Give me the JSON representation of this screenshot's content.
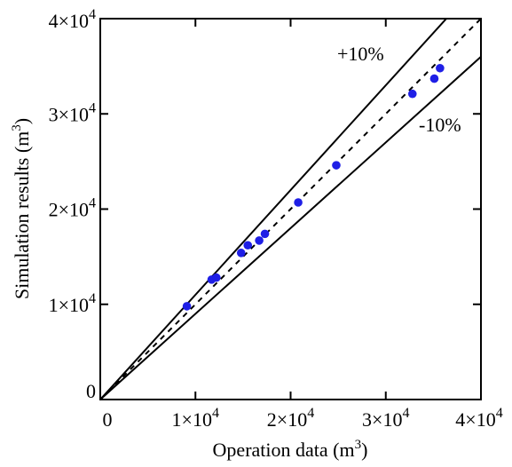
{
  "chart_data": {
    "type": "scatter",
    "xlabel": "Operation data (m",
    "xlabel_sup": "3",
    "xlabel_end": ")",
    "ylabel": "Simulation results (m",
    "ylabel_sup": "3",
    "ylabel_end": ")",
    "xlim": [
      0,
      40000
    ],
    "ylim": [
      0,
      40000
    ],
    "grid": false,
    "color": "#1f1fe6",
    "xticks": [
      {
        "value": 0,
        "base": "0",
        "exp": ""
      },
      {
        "value": 10000,
        "base": "1×10",
        "exp": "4"
      },
      {
        "value": 20000,
        "base": "2×10",
        "exp": "4"
      },
      {
        "value": 30000,
        "base": "3×10",
        "exp": "4"
      },
      {
        "value": 40000,
        "base": "4×10",
        "exp": "4"
      }
    ],
    "yticks": [
      {
        "value": 0,
        "base": "0",
        "exp": ""
      },
      {
        "value": 10000,
        "base": "1×10",
        "exp": "4"
      },
      {
        "value": 20000,
        "base": "2×10",
        "exp": "4"
      },
      {
        "value": 30000,
        "base": "3×10",
        "exp": "4"
      },
      {
        "value": 40000,
        "base": "4×10",
        "exp": "4"
      }
    ],
    "reference_lines": [
      {
        "slope": 1.0,
        "style": "dashed"
      },
      {
        "slope": 1.1,
        "style": "solid",
        "label": "+10%"
      },
      {
        "slope": 0.9,
        "style": "solid",
        "label": "-10%"
      }
    ],
    "points": [
      {
        "x": 9100,
        "y": 9800
      },
      {
        "x": 11700,
        "y": 12600
      },
      {
        "x": 12200,
        "y": 12800
      },
      {
        "x": 14800,
        "y": 15400
      },
      {
        "x": 15500,
        "y": 16200
      },
      {
        "x": 16700,
        "y": 16700
      },
      {
        "x": 17300,
        "y": 17400
      },
      {
        "x": 20800,
        "y": 20700
      },
      {
        "x": 24800,
        "y": 24600
      },
      {
        "x": 32800,
        "y": 32100
      },
      {
        "x": 35100,
        "y": 33700
      },
      {
        "x": 35700,
        "y": 34800
      }
    ]
  }
}
